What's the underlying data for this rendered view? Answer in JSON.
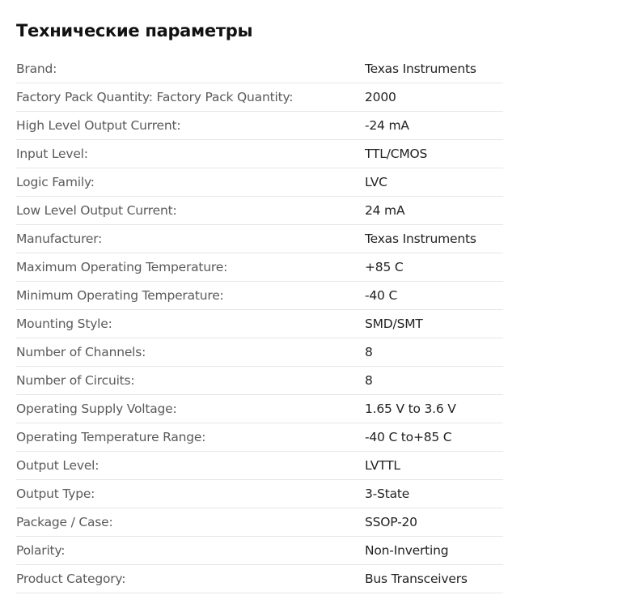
{
  "title": "Технические параметры",
  "rows": [
    {
      "label": "Brand:",
      "value": "Texas Instruments"
    },
    {
      "label": "Factory Pack Quantity: Factory Pack Quantity:",
      "value": "2000"
    },
    {
      "label": "High Level Output Current:",
      "value": "-24 mA"
    },
    {
      "label": "Input Level:",
      "value": "TTL/CMOS"
    },
    {
      "label": "Logic Family:",
      "value": "LVC"
    },
    {
      "label": "Low Level Output Current:",
      "value": "24 mA"
    },
    {
      "label": "Manufacturer:",
      "value": "Texas Instruments"
    },
    {
      "label": "Maximum Operating Temperature:",
      "value": "+85 C"
    },
    {
      "label": "Minimum Operating Temperature:",
      "value": "-40 C"
    },
    {
      "label": "Mounting Style:",
      "value": "SMD/SMT"
    },
    {
      "label": "Number of Channels:",
      "value": "8"
    },
    {
      "label": "Number of Circuits:",
      "value": "8"
    },
    {
      "label": "Operating Supply Voltage:",
      "value": "1.65 V to 3.6 V"
    },
    {
      "label": "Operating Temperature Range:",
      "value": "-40 C to+85 C"
    },
    {
      "label": "Output Level:",
      "value": "LVTTL"
    },
    {
      "label": "Output Type:",
      "value": "3-State"
    },
    {
      "label": "Package / Case:",
      "value": "SSOP-20"
    },
    {
      "label": "Polarity:",
      "value": "Non-Inverting"
    },
    {
      "label": "Product Category:",
      "value": "Bus Transceivers"
    }
  ]
}
